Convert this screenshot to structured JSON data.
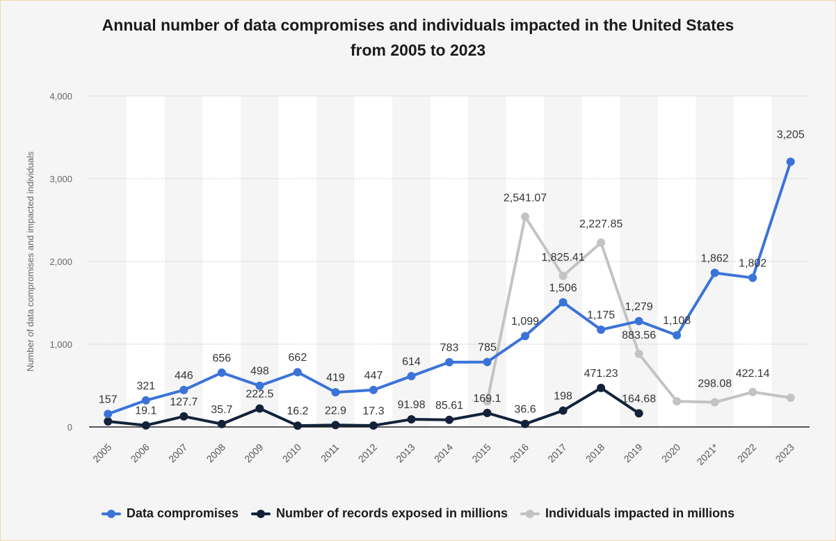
{
  "chart_data": {
    "type": "line",
    "title_line1": "Annual number of data compromises and individuals impacted in the United States",
    "title_line2": "from 2005 to 2023",
    "xlabel": "",
    "ylabel": "Number of data compromises and impacted individuals",
    "ylim": [
      0,
      4000
    ],
    "yticks": [
      0,
      1000,
      2000,
      3000,
      4000
    ],
    "ytick_labels": [
      "0",
      "1,000",
      "2,000",
      "3,000",
      "4,000"
    ],
    "grid": true,
    "legend_position": "bottom",
    "categories": [
      "2005",
      "2006",
      "2007",
      "2008",
      "2009",
      "2010",
      "2011",
      "2012",
      "2013",
      "2014",
      "2015",
      "2016",
      "2017",
      "2018",
      "2019",
      "2020",
      "2021*",
      "2022",
      "2023"
    ],
    "series": [
      {
        "name": "Data compromises",
        "color": "#3b73d9",
        "values": [
          157,
          321,
          446,
          656,
          498,
          662,
          419,
          447,
          614,
          783,
          785,
          1099,
          1506,
          1175,
          1279,
          1108,
          1862,
          1802,
          3205
        ],
        "labels": [
          "157",
          "321",
          "446",
          "656",
          "498",
          "662",
          "419",
          "447",
          "614",
          "783",
          "785",
          "1,099",
          "1,506",
          "1,175",
          "1,279",
          "1,108",
          "1,862",
          "1,802",
          "3,205"
        ]
      },
      {
        "name": "Number of records exposed in millions",
        "color": "#13223a",
        "values": [
          66.9,
          19.1,
          127.7,
          35.7,
          222.5,
          16.2,
          22.9,
          17.3,
          91.98,
          85.61,
          169.1,
          36.6,
          198,
          471.23,
          164.68,
          null,
          null,
          null,
          null
        ],
        "labels": [
          "",
          "19.1",
          "127.7",
          "35.7",
          "222.5",
          "16.2",
          "22.9",
          "17.3",
          "91.98",
          "85.61",
          "169.1",
          "36.6",
          "198",
          "471.23",
          "164.68",
          "",
          "",
          "",
          ""
        ]
      },
      {
        "name": "Individuals impacted in millions",
        "color": "#c3c3c3",
        "values": [
          null,
          null,
          null,
          null,
          null,
          null,
          null,
          null,
          null,
          null,
          310,
          2541.07,
          1825.41,
          2227.85,
          883.56,
          310.12,
          298.08,
          422.14,
          353.03
        ],
        "labels": [
          "",
          "",
          "",
          "",
          "",
          "",
          "",
          "",
          "",
          "",
          "",
          "2,541.07",
          "1,825.41",
          "2,227.85",
          "883.56",
          "",
          "298.08",
          "422.14",
          ""
        ]
      }
    ]
  }
}
